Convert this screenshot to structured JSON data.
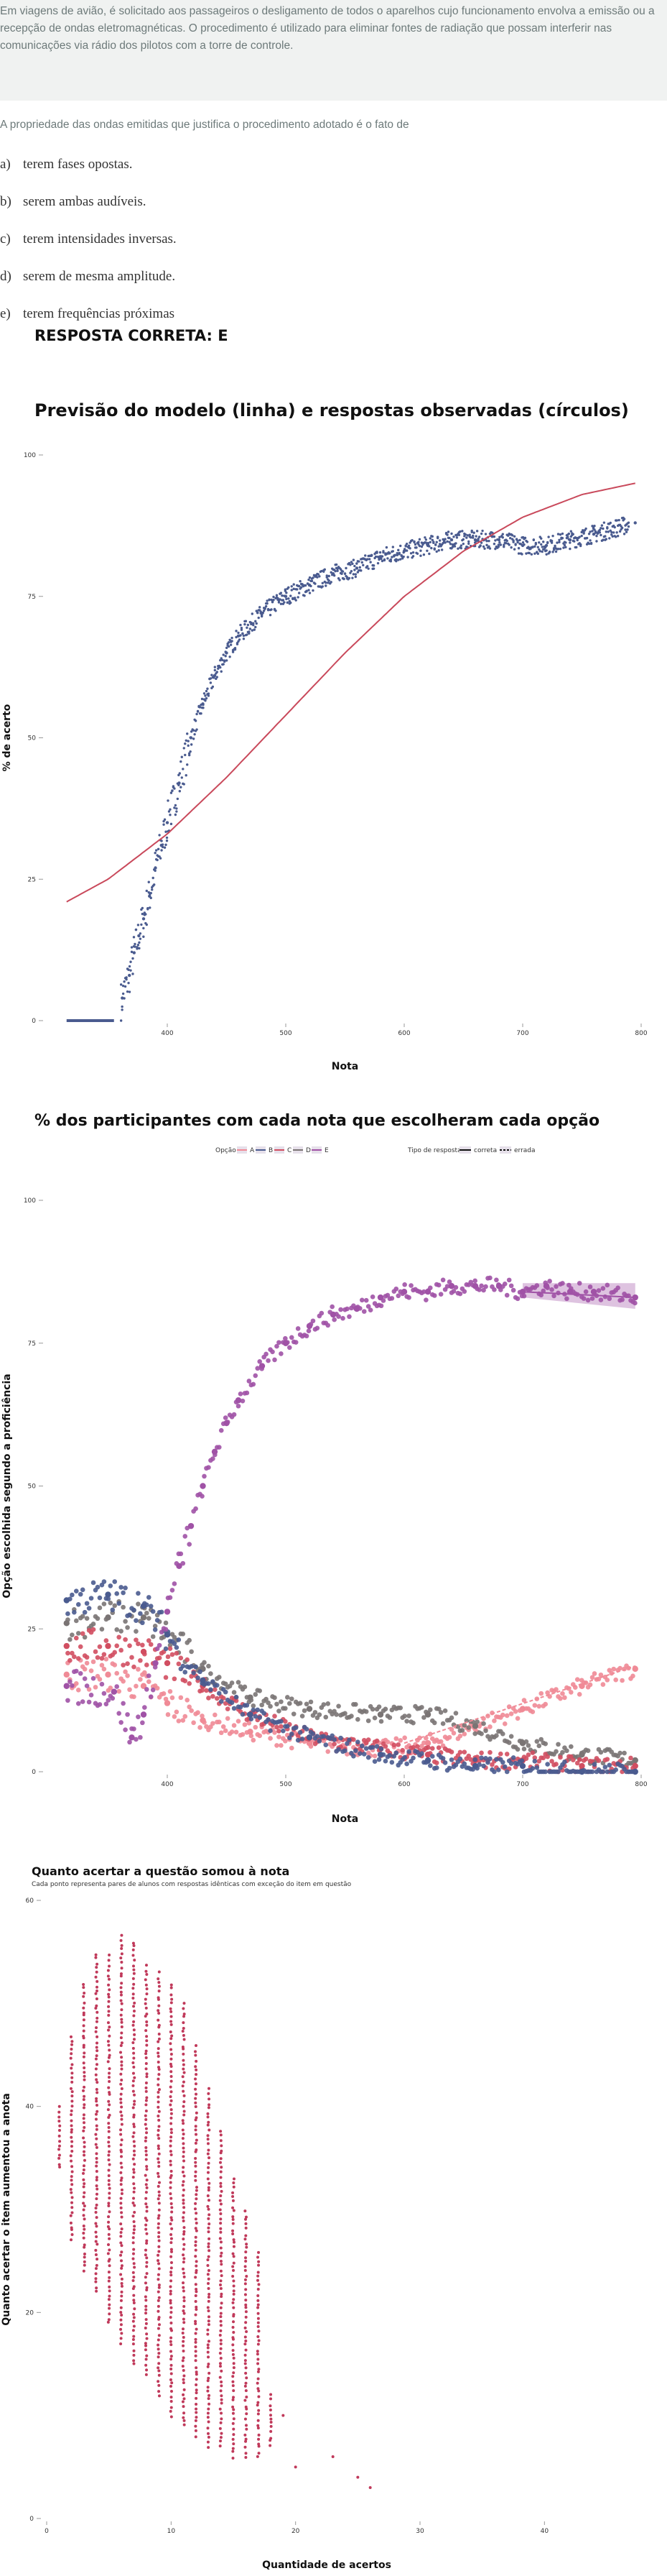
{
  "statement": "Em viagens de avião, é solicitado aos passageiros o desligamento de todos o aparelhos cujo funcionamento envolva a emissão ou a recepção de ondas eletromagnéticas. O procedimento é utilizado para eliminar fontes de radiação que possam interferir nas comunicações via rádio dos pilotos com a torre de controle.",
  "question": "A propriedade das ondas emitidas que justifica o procedimento adotado é o fato de",
  "options": [
    {
      "letter": "a)",
      "text": "terem fases opostas."
    },
    {
      "letter": "b)",
      "text": "serem ambas audíveis."
    },
    {
      "letter": "c)",
      "text": "terem intensidades inversas."
    },
    {
      "letter": "d)",
      "text": "serem de mesma amplitude."
    },
    {
      "letter": "e)",
      "text": "terem frequências próximas"
    }
  ],
  "answer": "RESPOSTA CORRETA: E",
  "colors": {
    "model": "#c9495b",
    "observed": "#4a5b8f",
    "A": "#f08a96",
    "B": "#4a5b8f",
    "C": "#d14e61",
    "D": "#7a7474",
    "E": "#a052a6",
    "points3": "#c0395a"
  },
  "chart_data": [
    {
      "type": "scatter",
      "title": "Previsão do modelo (linha) e respostas observadas (círculos)",
      "xlabel": "Nota",
      "ylabel": "% de acerto",
      "xlim": [
        300,
        800
      ],
      "ylim": [
        0,
        100
      ],
      "x_ticks": [
        400,
        500,
        600,
        700,
        800
      ],
      "y_ticks": [
        0,
        25,
        50,
        75,
        100
      ],
      "grid": false,
      "series": [
        {
          "kind": "line",
          "role": "model",
          "x": [
            315,
            350,
            400,
            450,
            500,
            550,
            600,
            650,
            700,
            750,
            795
          ],
          "y": [
            21,
            25,
            33,
            43,
            54,
            65,
            75,
            83,
            89,
            93,
            95
          ]
        },
        {
          "kind": "points",
          "role": "observed",
          "x": [
            315,
            355,
            362,
            368,
            372,
            376,
            380,
            385,
            390,
            395,
            400,
            410,
            420,
            430,
            440,
            450,
            460,
            480,
            500,
            520,
            540,
            560,
            580,
            600,
            620,
            640,
            660,
            680,
            700,
            720,
            740,
            760,
            795
          ],
          "y": [
            0,
            0,
            4,
            8,
            12,
            15,
            18,
            22,
            27,
            31,
            35,
            42,
            50,
            56,
            61,
            65,
            68,
            72,
            75,
            77,
            79,
            80,
            82,
            83,
            84,
            85,
            85,
            85,
            84,
            84,
            85,
            86,
            88
          ]
        }
      ]
    },
    {
      "type": "scatter",
      "title": "% dos participantes com cada nota que escolheram cada opção",
      "xlabel": "Nota",
      "ylabel": "Opção escolhida segundo a proficiência",
      "xlim": [
        300,
        800
      ],
      "ylim": [
        0,
        100
      ],
      "x_ticks": [
        400,
        500,
        600,
        700,
        800
      ],
      "y_ticks": [
        0,
        25,
        50,
        75,
        100
      ],
      "legend": {
        "position": "top",
        "option_title": "Opção",
        "options": [
          "A",
          "B",
          "C",
          "D",
          "E"
        ],
        "type_title": "Tipo de resposta",
        "types": [
          "correta",
          "errada"
        ]
      },
      "series": [
        {
          "name": "A",
          "x": [
            315,
            350,
            380,
            400,
            430,
            470,
            520,
            580,
            620,
            660,
            700,
            750,
            795
          ],
          "y": [
            17,
            17,
            15,
            12,
            9,
            7,
            5,
            4,
            5,
            8,
            11,
            15,
            18
          ]
        },
        {
          "name": "B",
          "x": [
            315,
            350,
            380,
            400,
            430,
            470,
            520,
            580,
            620,
            660,
            700,
            750,
            795
          ],
          "y": [
            30,
            31,
            29,
            24,
            16,
            10,
            6,
            3,
            2,
            1,
            1,
            0,
            0
          ]
        },
        {
          "name": "C",
          "x": [
            315,
            350,
            380,
            400,
            430,
            470,
            520,
            580,
            620,
            660,
            700,
            750,
            795
          ],
          "y": [
            22,
            22,
            21,
            19,
            15,
            10,
            6,
            4,
            3,
            2,
            2,
            1,
            1
          ]
        },
        {
          "name": "D",
          "x": [
            315,
            350,
            380,
            400,
            430,
            470,
            520,
            580,
            620,
            660,
            700,
            750,
            795
          ],
          "y": [
            26,
            27,
            27,
            24,
            18,
            13,
            11,
            10,
            10,
            8,
            5,
            3,
            2
          ]
        },
        {
          "name": "E",
          "x": [
            315,
            355,
            370,
            380,
            390,
            400,
            410,
            420,
            430,
            440,
            450,
            460,
            480,
            500,
            520,
            540,
            560,
            580,
            600,
            620,
            640,
            660,
            680,
            700,
            720,
            740,
            760,
            795
          ],
          "y": [
            15,
            14,
            6,
            10,
            19,
            28,
            36,
            43,
            50,
            56,
            61,
            65,
            71,
            75,
            78,
            80,
            81,
            83,
            84,
            84,
            85,
            85,
            85,
            84,
            85,
            84,
            84,
            83
          ]
        }
      ]
    },
    {
      "type": "scatter",
      "title": "Quanto acertar a questão somou à nota",
      "subtitle": "Cada ponto representa pares de alunos com respostas idênticas com exceção do item em questão",
      "xlabel": "Quantidade de acertos",
      "ylabel": "Quanto acertar o item aumentou a anota",
      "xlim": [
        0,
        45
      ],
      "ylim": [
        0,
        60
      ],
      "x_ticks": [
        0,
        10,
        20,
        30,
        40
      ],
      "y_ticks": [
        0,
        20,
        40,
        60
      ],
      "columns": [
        {
          "x": 1,
          "ymin": 34,
          "ymax": 40
        },
        {
          "x": 2,
          "ymin": 27,
          "ymax": 47
        },
        {
          "x": 3,
          "ymin": 24,
          "ymax": 52
        },
        {
          "x": 4,
          "ymin": 22,
          "ymax": 55
        },
        {
          "x": 5,
          "ymin": 19,
          "ymax": 55
        },
        {
          "x": 6,
          "ymin": 17,
          "ymax": 57
        },
        {
          "x": 7,
          "ymin": 15,
          "ymax": 56
        },
        {
          "x": 8,
          "ymin": 14,
          "ymax": 54
        },
        {
          "x": 9,
          "ymin": 12,
          "ymax": 53
        },
        {
          "x": 10,
          "ymin": 10,
          "ymax": 52
        },
        {
          "x": 11,
          "ymin": 9,
          "ymax": 50
        },
        {
          "x": 12,
          "ymin": 8,
          "ymax": 46
        },
        {
          "x": 13,
          "ymin": 7,
          "ymax": 42
        },
        {
          "x": 14,
          "ymin": 7,
          "ymax": 38
        },
        {
          "x": 15,
          "ymin": 6,
          "ymax": 33
        },
        {
          "x": 16,
          "ymin": 6,
          "ymax": 30
        },
        {
          "x": 17,
          "ymin": 6,
          "ymax": 26
        },
        {
          "x": 18,
          "ymin": 7,
          "ymax": 12
        }
      ],
      "extra_points": [
        [
          19,
          10
        ],
        [
          20,
          5
        ],
        [
          23,
          6
        ],
        [
          25,
          4
        ],
        [
          26,
          3
        ]
      ]
    }
  ]
}
